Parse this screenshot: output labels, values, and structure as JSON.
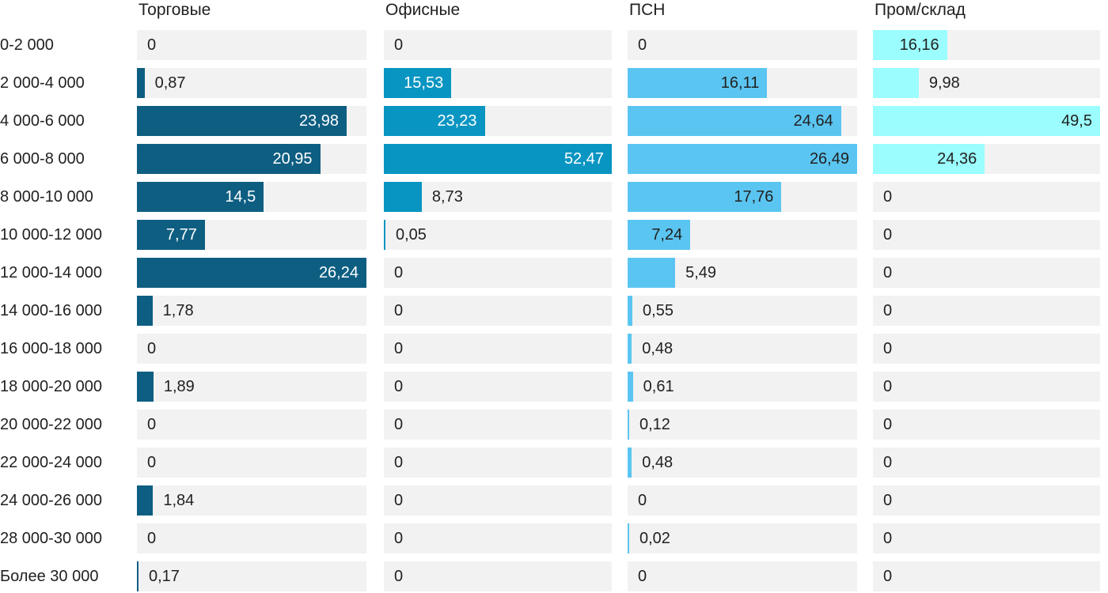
{
  "chart_data": {
    "type": "bar",
    "orientation": "horizontal",
    "title": "",
    "xlabel": "",
    "ylabel": "",
    "grid": false,
    "legend_position": "none",
    "scaling": "each column scaled independently to its own max value",
    "decimal_separator": ",",
    "track_color": "#f2f2f2",
    "text_color": "#212121",
    "categories": [
      "0-2 000",
      "2 000-4 000",
      "4 000-6 000",
      "6 000-8 000",
      "8 000-10 000",
      "10 000-12 000",
      "12 000-14 000",
      "14 000-16 000",
      "16 000-18 000",
      "18 000-20 000",
      "20 000-22 000",
      "22 000-24 000",
      "24 000-26 000",
      "28 000-30 000",
      "Более 30 000"
    ],
    "series": [
      {
        "name": "Торговые",
        "color": "#0e5e82",
        "label_color_inside": "#ffffff",
        "values": [
          0,
          0.87,
          23.98,
          20.95,
          14.5,
          7.77,
          26.24,
          1.78,
          0,
          1.89,
          0,
          0,
          1.84,
          0,
          0.17
        ],
        "labels": [
          "0",
          "0,87",
          "23,98",
          "20,95",
          "14,5",
          "7,77",
          "26,24",
          "1,78",
          "0",
          "1,89",
          "0",
          "0",
          "1,84",
          "0",
          "0,17"
        ]
      },
      {
        "name": "Офисные",
        "color": "#0995c2",
        "label_color_inside": "#ffffff",
        "values": [
          0,
          15.53,
          23.23,
          52.47,
          8.73,
          0.05,
          0,
          0,
          0,
          0,
          0,
          0,
          0,
          0,
          0
        ],
        "labels": [
          "0",
          "15,53",
          "23,23",
          "52,47",
          "8,73",
          "0,05",
          "0",
          "0",
          "0",
          "0",
          "0",
          "0",
          "0",
          "0",
          "0"
        ]
      },
      {
        "name": "ПСН",
        "color": "#5bc5f1",
        "label_color_inside": "#212121",
        "values": [
          0,
          16.11,
          24.64,
          26.49,
          17.76,
          7.24,
          5.49,
          0.55,
          0.48,
          0.61,
          0.12,
          0.48,
          0,
          0.02,
          0
        ],
        "labels": [
          "0",
          "16,11",
          "24,64",
          "26,49",
          "17,76",
          "7,24",
          "5,49",
          "0,55",
          "0,48",
          "0,61",
          "0,12",
          "0,48",
          "0",
          "0,02",
          "0"
        ]
      },
      {
        "name": "Пром/склад",
        "color": "#9bfdfd",
        "label_color_inside": "#212121",
        "values": [
          16.16,
          9.98,
          49.5,
          24.36,
          0,
          0,
          0,
          0,
          0,
          0,
          0,
          0,
          0,
          0,
          0
        ],
        "labels": [
          "16,16",
          "9,98",
          "49,5",
          "24,36",
          "0",
          "0",
          "0",
          "0",
          "0",
          "0",
          "0",
          "0",
          "0",
          "0",
          "0"
        ]
      }
    ]
  }
}
